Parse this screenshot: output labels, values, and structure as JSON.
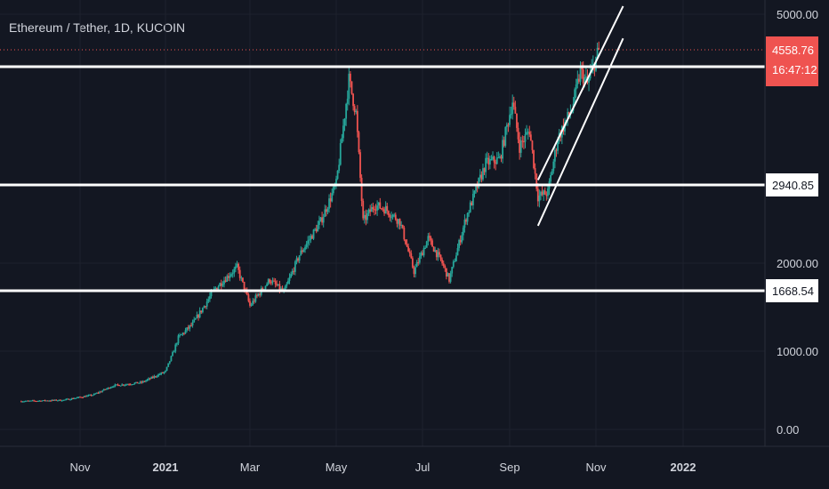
{
  "header": {
    "title": "Ethereum / Tether, 1D, KUCOIN"
  },
  "colors": {
    "background": "#131722",
    "up": "#26a69a",
    "down": "#ef5350",
    "grid": "#1e222d",
    "text": "#d1d4dc",
    "level_line": "#ffffff",
    "last_price_bg": "#ef5350"
  },
  "chart_data": {
    "type": "candlestick",
    "symbol": "Ethereum / Tether",
    "interval": "1D",
    "exchange": "KUCOIN",
    "ylim": [
      0,
      5000
    ],
    "y_ticks": [
      "5000.00",
      "2000.00",
      "1000.00",
      "0.00"
    ],
    "x_ticks": [
      "Nov",
      "2021",
      "Mar",
      "May",
      "Jul",
      "Sep",
      "Nov",
      "2022"
    ],
    "last_price": "4558.76",
    "countdown": "16:47:12",
    "horizontal_levels": [
      "4357.74",
      "2940.85",
      "1668.54"
    ],
    "price_path": [
      [
        "2020-09-20",
        360
      ],
      [
        "2020-10-20",
        375
      ],
      [
        "2020-11-10",
        440
      ],
      [
        "2020-11-25",
        560
      ],
      [
        "2020-12-15",
        600
      ],
      [
        "2021-01-01",
        740
      ],
      [
        "2021-01-10",
        1150
      ],
      [
        "2021-01-20",
        1300
      ],
      [
        "2021-02-05",
        1700
      ],
      [
        "2021-02-20",
        1950
      ],
      [
        "2021-03-01",
        1500
      ],
      [
        "2021-03-15",
        1800
      ],
      [
        "2021-03-25",
        1650
      ],
      [
        "2021-04-05",
        2100
      ],
      [
        "2021-04-20",
        2500
      ],
      [
        "2021-05-01",
        2950
      ],
      [
        "2021-05-10",
        4200
      ],
      [
        "2021-05-15",
        3800
      ],
      [
        "2021-05-20",
        2500
      ],
      [
        "2021-05-28",
        2700
      ],
      [
        "2021-06-05",
        2650
      ],
      [
        "2021-06-15",
        2500
      ],
      [
        "2021-06-25",
        1900
      ],
      [
        "2021-07-05",
        2300
      ],
      [
        "2021-07-15",
        2000
      ],
      [
        "2021-07-20",
        1800
      ],
      [
        "2021-08-01",
        2550
      ],
      [
        "2021-08-15",
        3200
      ],
      [
        "2021-08-25",
        3250
      ],
      [
        "2021-09-03",
        3950
      ],
      [
        "2021-09-08",
        3400
      ],
      [
        "2021-09-15",
        3600
      ],
      [
        "2021-09-21",
        2800
      ],
      [
        "2021-09-28",
        2850
      ],
      [
        "2021-10-05",
        3500
      ],
      [
        "2021-10-15",
        3850
      ],
      [
        "2021-10-21",
        4300
      ],
      [
        "2021-10-26",
        4150
      ],
      [
        "2021-11-03",
        4558.76
      ]
    ]
  }
}
